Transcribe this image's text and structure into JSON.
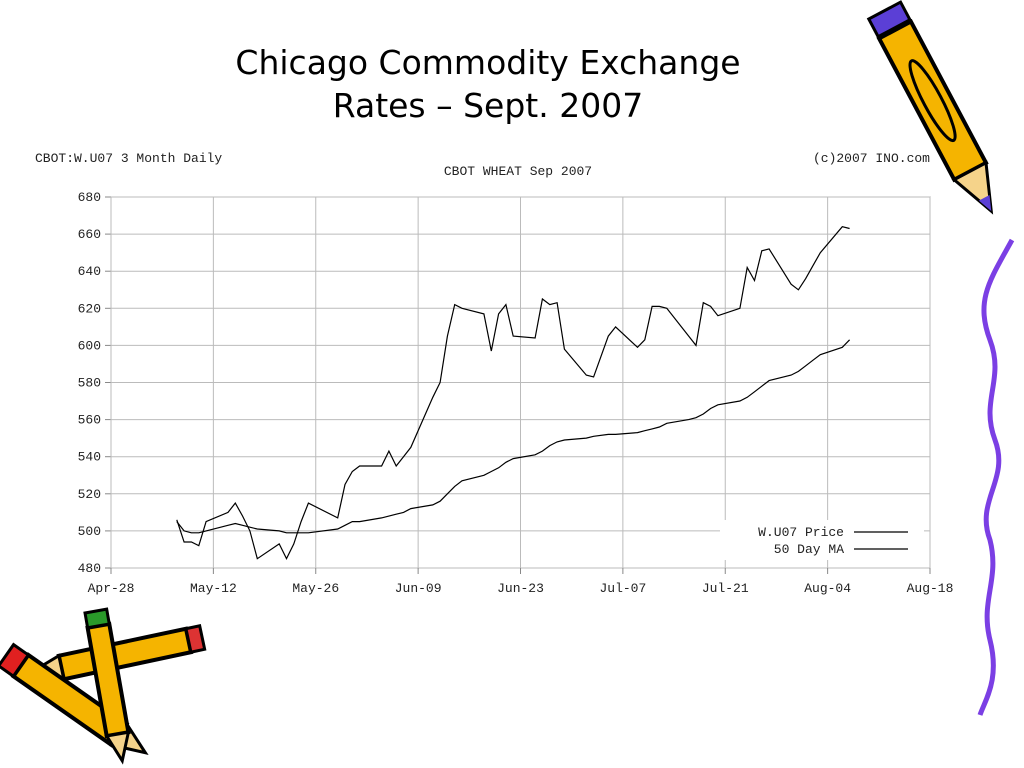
{
  "slide": {
    "title_lines": [
      "Chicago Commodity Exchange",
      "Rates – Sept. 2007"
    ]
  },
  "chart_data": {
    "type": "line",
    "title": "CBOT WHEAT Sep 2007",
    "annotations": [
      "CBOT:W.U07 3 Month Daily",
      "(c)2007 INO.com"
    ],
    "x": [
      "May-07",
      "May-08",
      "May-09",
      "May-10",
      "May-11",
      "May-14",
      "May-15",
      "May-16",
      "May-17",
      "May-18",
      "May-21",
      "May-22",
      "May-23",
      "May-24",
      "May-25",
      "May-29",
      "May-30",
      "May-31",
      "Jun-01",
      "Jun-04",
      "Jun-05",
      "Jun-06",
      "Jun-07",
      "Jun-08",
      "Jun-11",
      "Jun-12",
      "Jun-13",
      "Jun-14",
      "Jun-15",
      "Jun-18",
      "Jun-19",
      "Jun-20",
      "Jun-21",
      "Jun-22",
      "Jun-25",
      "Jun-26",
      "Jun-27",
      "Jun-28",
      "Jun-29",
      "Jul-02",
      "Jul-03",
      "Jul-05",
      "Jul-06",
      "Jul-09",
      "Jul-10",
      "Jul-11",
      "Jul-12",
      "Jul-13",
      "Jul-16",
      "Jul-17",
      "Jul-18",
      "Jul-19",
      "Jul-20",
      "Jul-23",
      "Jul-24",
      "Jul-25",
      "Jul-26",
      "Jul-27",
      "Jul-30",
      "Jul-31",
      "Aug-01",
      "Aug-02",
      "Aug-03",
      "Aug-06",
      "Aug-07"
    ],
    "series": [
      {
        "name": "W.U07 Price",
        "color": "#000000",
        "values": [
          506,
          494,
          494,
          492,
          505,
          510,
          515,
          508,
          500,
          485,
          493,
          485,
          493,
          505,
          515,
          507,
          525,
          532,
          535,
          535,
          543,
          535,
          540,
          545,
          572,
          580,
          605,
          622,
          620,
          617,
          597,
          617,
          622,
          605,
          604,
          625,
          622,
          623,
          598,
          584,
          583,
          605,
          610,
          599,
          603,
          621,
          621,
          620,
          605,
          600,
          623,
          621,
          616,
          620,
          642,
          635,
          651,
          652,
          633,
          630,
          636,
          643,
          650,
          664,
          663
        ]
      },
      {
        "name": "50 Day MA",
        "color": "#000000",
        "values": [
          505,
          500,
          499,
          499,
          500,
          503,
          504,
          503,
          502,
          501,
          500,
          499,
          499,
          499,
          499,
          501,
          503,
          505,
          505,
          507,
          508,
          509,
          510,
          512,
          514,
          516,
          520,
          524,
          527,
          530,
          532,
          534,
          537,
          539,
          541,
          543,
          546,
          548,
          549,
          550,
          551,
          552,
          552,
          553,
          554,
          555,
          556,
          558,
          560,
          561,
          563,
          566,
          568,
          570,
          572,
          575,
          578,
          581,
          584,
          586,
          589,
          592,
          595,
          599,
          603
        ]
      }
    ],
    "xlim": [
      "Apr-28",
      "Aug-18"
    ],
    "xticks": [
      "Apr-28",
      "May-12",
      "May-26",
      "Jun-09",
      "Jun-23",
      "Jul-07",
      "Jul-21",
      "Aug-04",
      "Aug-18"
    ],
    "ylim": [
      480,
      680
    ],
    "yticks": [
      480,
      500,
      520,
      540,
      560,
      580,
      600,
      620,
      640,
      660,
      680
    ],
    "grid": true,
    "legend": "lower-right"
  }
}
